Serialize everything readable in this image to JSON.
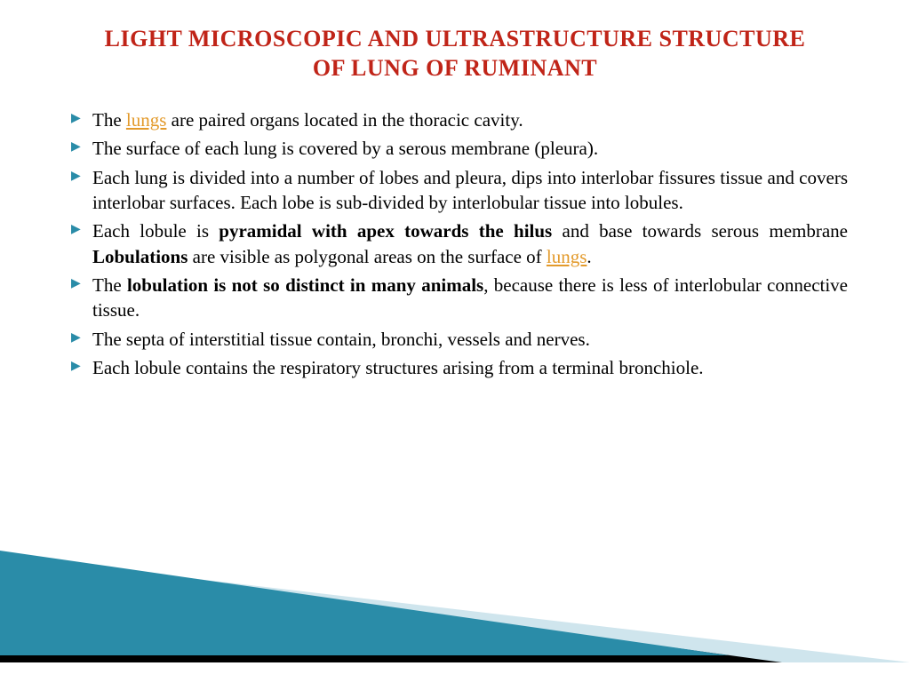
{
  "title": {
    "line1": "LIGHT MICROSCOPIC AND ULTRASTRUCTURE STRUCTURE",
    "line2": "OF LUNG OF RUMINANT",
    "color": "#c02418",
    "fontsize": 26
  },
  "bullet": {
    "glyph": "▶",
    "color": "#2a8ca8"
  },
  "link_color": "#e39a2b",
  "body_fontsize": 21,
  "body_color": "#000000",
  "items": [
    {
      "pre": "The ",
      "link": "lungs",
      "post": " are paired organs located in the thoracic cavity."
    },
    {
      "plain": "The surface of each lung is covered by a serous membrane (pleura)."
    },
    {
      "plain": "Each lung is divided into a number of lobes and pleura, dips into interlobar fissures tissue and covers interlobar surfaces. Each lobe is sub-divided by interlobular tissue into lobules."
    },
    {
      "p1": "Each lobule is ",
      "b1": "pyramidal with apex towards the hilus",
      "p2": " and base towards serous membrane ",
      "b2": "Lobulations",
      "p3": " are visible as polygonal areas on the surface of ",
      "link": "lungs",
      "p4": "."
    },
    {
      "p1": "The ",
      "b1": "lobulation is not so distinct in many animals",
      "p2": ", because there is less of interlobular connective tissue."
    },
    {
      "plain": "The septa of interstitial tissue contain, bronchi, vessels and nerves."
    },
    {
      "plain": " Each lobule contains the respiratory structures arising from a terminal bronchiole."
    }
  ],
  "decor": {
    "teal": "#2a8ca8",
    "lightblue": "#cfe5ed",
    "black": "#000000"
  }
}
